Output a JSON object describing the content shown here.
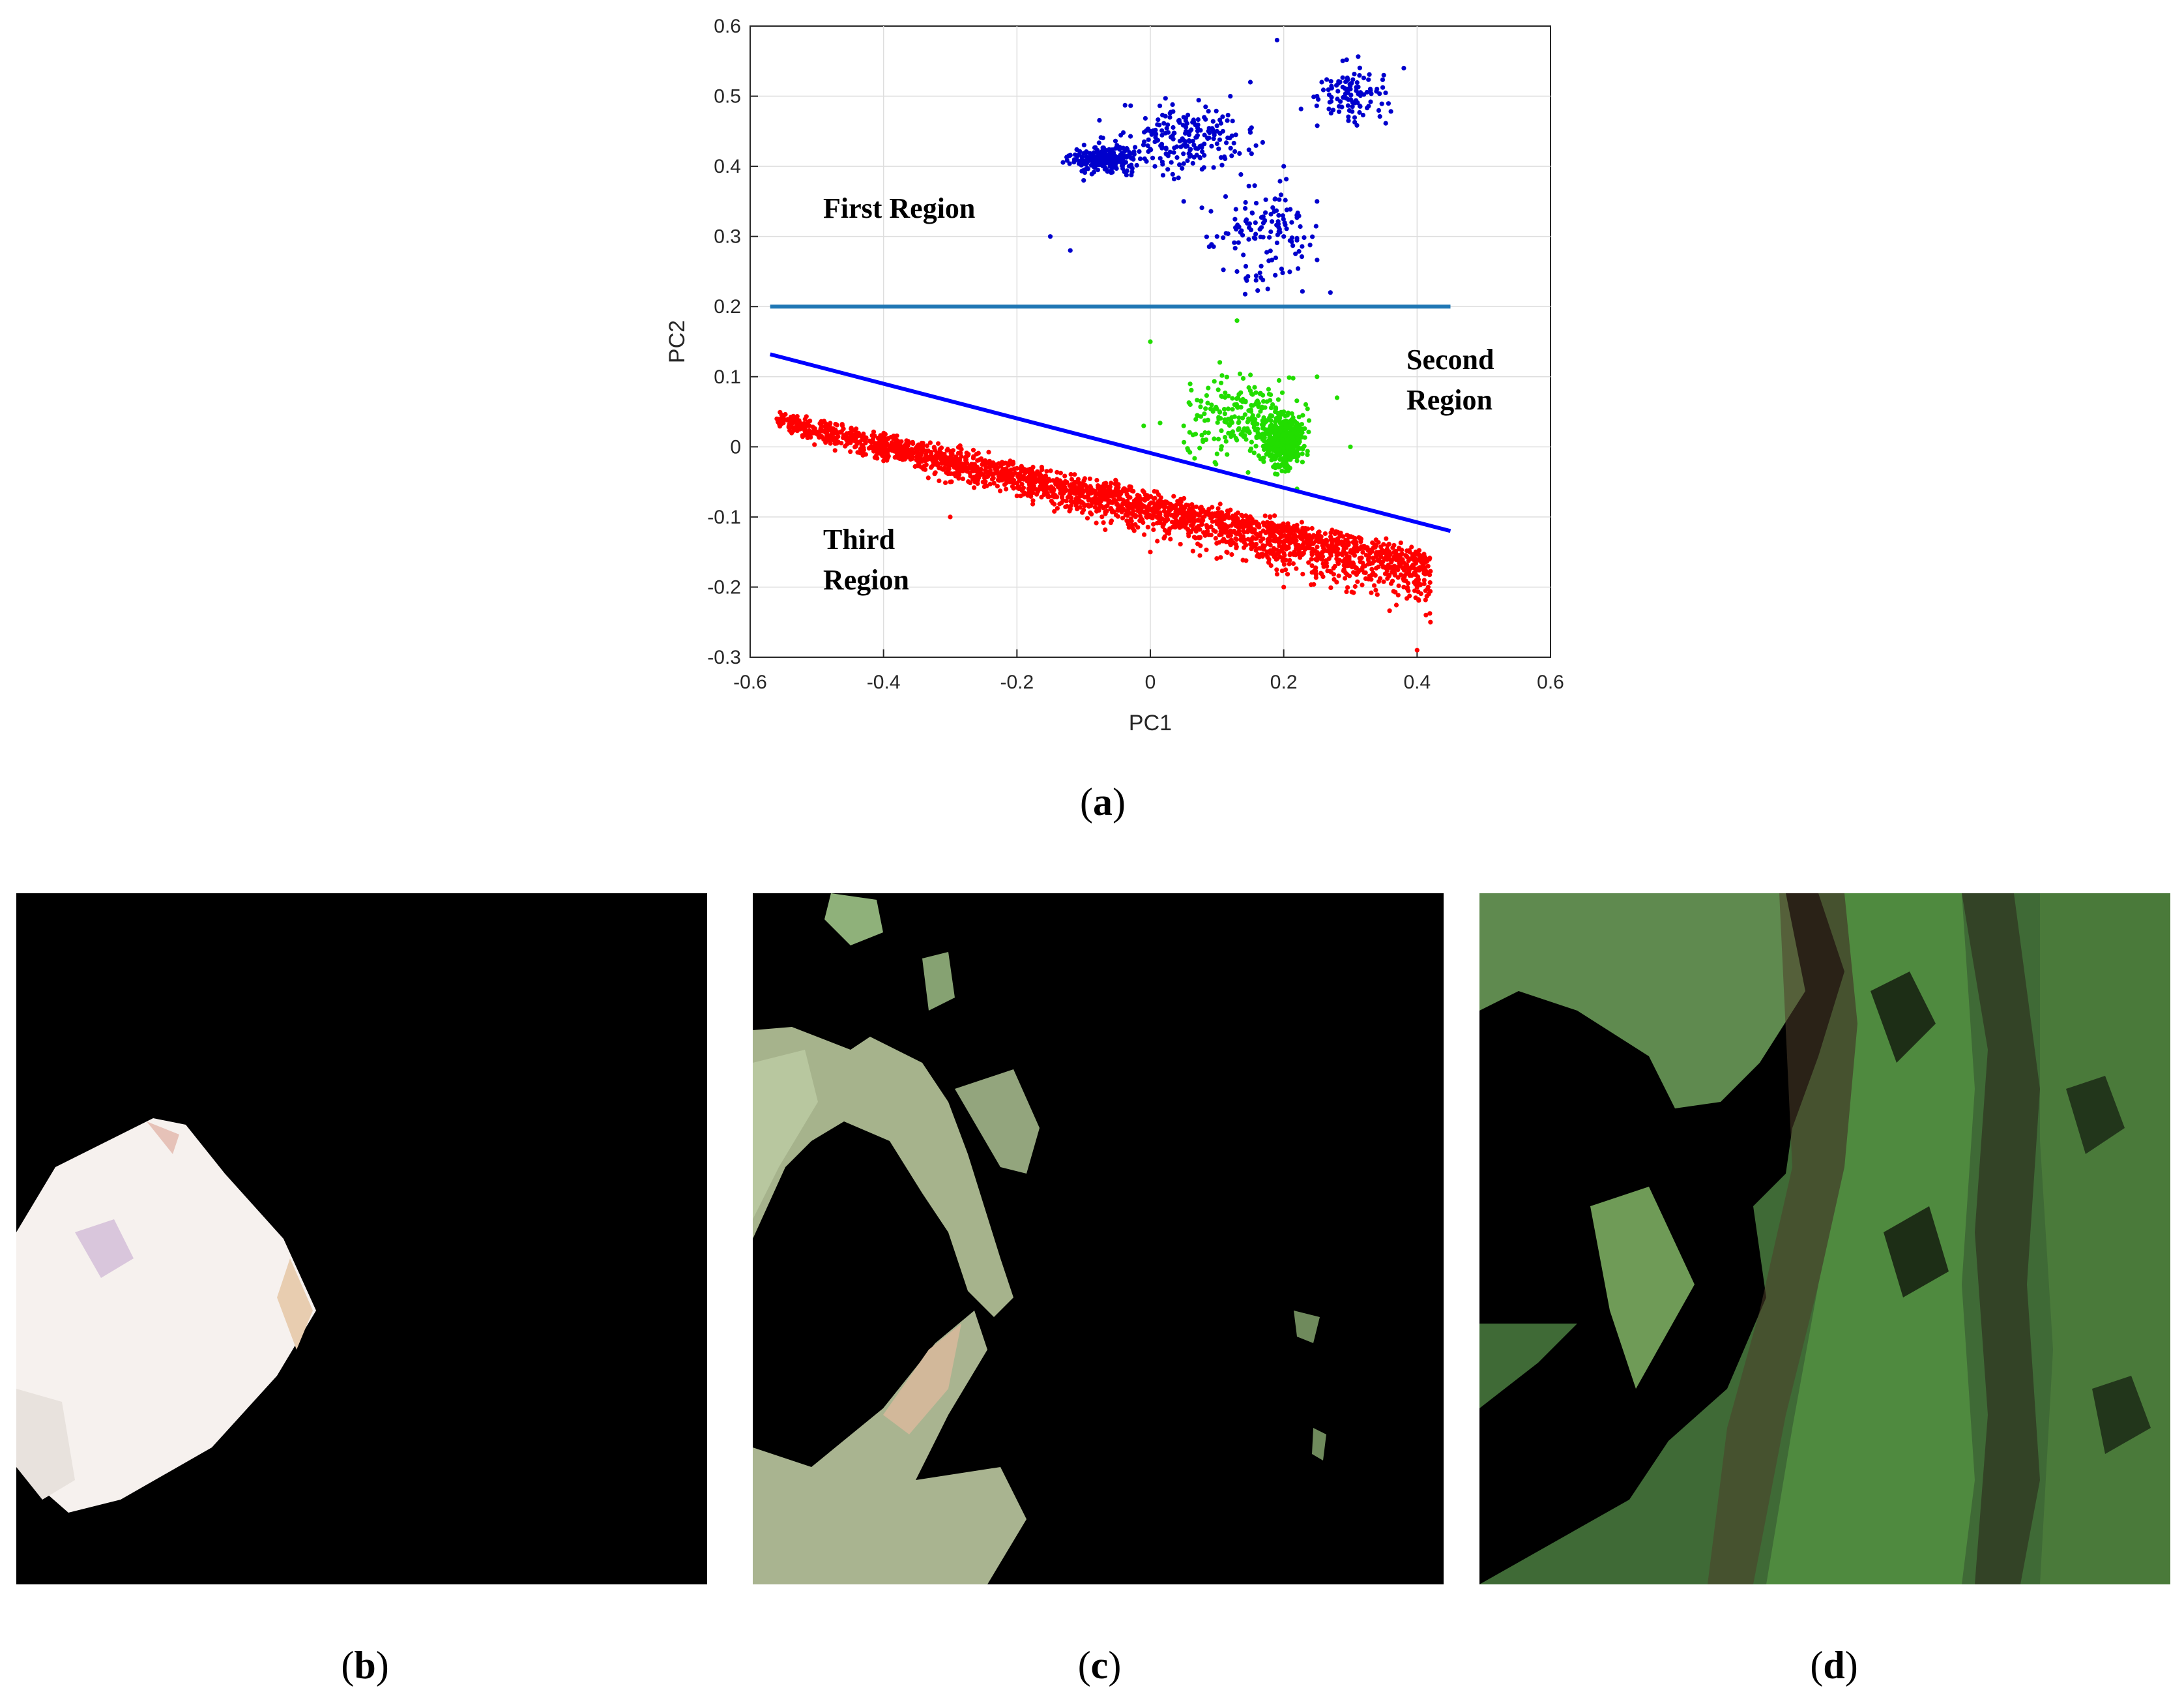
{
  "chart_data": {
    "type": "scatter",
    "xlabel": "PC1",
    "ylabel": "PC2",
    "xlim": [
      -0.6,
      0.6
    ],
    "ylim": [
      -0.3,
      0.6
    ],
    "x_ticks": [
      "-0.6",
      "-0.4",
      "-0.2",
      "0",
      "0.2",
      "0.4",
      "0.6"
    ],
    "y_ticks": [
      "0.6",
      "0.5",
      "0.4",
      "0.3",
      "0.2",
      "0.1",
      "0",
      "-0.1",
      "-0.2",
      "-0.3"
    ],
    "grid": true,
    "annotations": [
      "First Region",
      "Second Region",
      "Third Region"
    ],
    "lines": [
      {
        "color": "#1f77b4",
        "x": [
          -0.57,
          0.45
        ],
        "y": [
          0.2,
          0.2
        ]
      },
      {
        "color": "#0000ff",
        "x": [
          -0.57,
          0.45
        ],
        "y": [
          0.132,
          -0.12
        ]
      }
    ],
    "series": [
      {
        "color": "#0000cc",
        "count": 700,
        "points": [
          [
            -0.1,
            0.38
          ],
          [
            -0.08,
            0.41
          ],
          [
            -0.05,
            0.43
          ],
          [
            0.0,
            0.45
          ],
          [
            0.05,
            0.47
          ],
          [
            0.1,
            0.45
          ],
          [
            0.12,
            0.5
          ],
          [
            0.15,
            0.52
          ],
          [
            0.19,
            0.58
          ],
          [
            0.25,
            0.5
          ],
          [
            0.3,
            0.51
          ],
          [
            0.35,
            0.53
          ],
          [
            0.38,
            0.54
          ],
          [
            0.2,
            0.4
          ],
          [
            0.25,
            0.35
          ],
          [
            0.1,
            0.3
          ],
          [
            0.13,
            0.25
          ],
          [
            0.2,
            0.3
          ],
          [
            0.27,
            0.22
          ],
          [
            -0.15,
            0.3
          ],
          [
            -0.12,
            0.28
          ],
          [
            0.05,
            0.35
          ]
        ]
      },
      {
        "color": "#22dd00",
        "count": 650,
        "points": [
          [
            0.2,
            0.0
          ],
          [
            0.18,
            0.02
          ],
          [
            0.22,
            -0.02
          ],
          [
            0.2,
            0.05
          ],
          [
            0.15,
            0.08
          ],
          [
            0.25,
            0.1
          ],
          [
            0.13,
            0.18
          ],
          [
            0.1,
            -0.01
          ],
          [
            0.05,
            0.03
          ],
          [
            0.28,
            0.07
          ],
          [
            0.22,
            -0.06
          ],
          [
            0.0,
            0.15
          ],
          [
            -0.01,
            0.03
          ],
          [
            0.3,
            0.0
          ]
        ]
      },
      {
        "color": "#ff0000",
        "count": 2600,
        "points": [
          [
            -0.56,
            0.04
          ],
          [
            -0.5,
            0.02
          ],
          [
            -0.4,
            -0.02
          ],
          [
            -0.3,
            -0.05
          ],
          [
            -0.2,
            -0.07
          ],
          [
            -0.1,
            -0.09
          ],
          [
            0.0,
            -0.1
          ],
          [
            0.1,
            -0.11
          ],
          [
            0.2,
            -0.12
          ],
          [
            0.3,
            -0.15
          ],
          [
            0.38,
            -0.2
          ],
          [
            0.42,
            -0.25
          ],
          [
            0.4,
            -0.29
          ],
          [
            -0.3,
            -0.1
          ],
          [
            0.0,
            -0.15
          ],
          [
            0.2,
            -0.2
          ]
        ]
      }
    ]
  },
  "figure": {
    "label_a": "a",
    "label_b": "b",
    "label_c": "c",
    "label_d": "d"
  }
}
